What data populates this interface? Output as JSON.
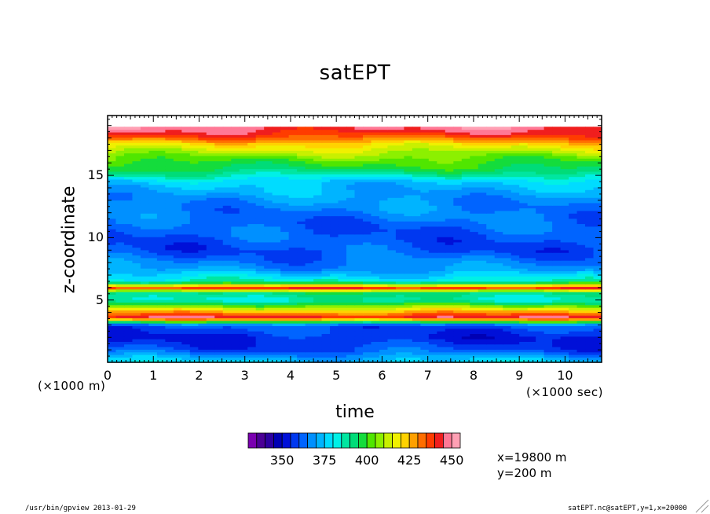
{
  "chart_data": {
    "type": "heatmap",
    "title": "satEPT",
    "xlabel": "time",
    "ylabel": "z-coordinate",
    "x_scale_label": "(×1000 sec)",
    "y_scale_label": "(×1000 m)",
    "xlim": [
      0,
      10.8
    ],
    "ylim": [
      0,
      19.8
    ],
    "x_ticks": [
      "0",
      "1",
      "2",
      "3",
      "4",
      "5",
      "6",
      "7",
      "8",
      "9",
      "10"
    ],
    "y_ticks": [
      "5",
      "10",
      "15"
    ],
    "colorbar": {
      "levels": [
        335,
        340,
        345,
        350,
        355,
        360,
        365,
        370,
        375,
        380,
        385,
        390,
        395,
        400,
        405,
        410,
        415,
        420,
        425,
        430,
        435,
        440,
        445,
        450
      ],
      "tick_labels": [
        "350",
        "375",
        "400",
        "425",
        "450"
      ],
      "colors": [
        "#7a00b0",
        "#4b0096",
        "#2d00a0",
        "#0000b4",
        "#0010d8",
        "#0038f0",
        "#0064ff",
        "#0090ff",
        "#00b4ff",
        "#00dcff",
        "#00f0e6",
        "#00e6a0",
        "#00dc78",
        "#14dc3c",
        "#50e600",
        "#8cf000",
        "#c8f000",
        "#f0f000",
        "#ffd200",
        "#ffa000",
        "#ff6e00",
        "#ff3c00",
        "#f01e1e",
        "#ff7896",
        "#ffa0b4"
      ]
    },
    "profile_z_km": [
      0.2,
      1.0,
      2.0,
      3.0,
      3.6,
      4.2,
      5.0,
      5.6,
      6.0,
      6.5,
      7.5,
      9.0,
      11.0,
      13.0,
      14.5,
      15.5,
      16.5,
      17.5,
      18.3,
      18.9
    ],
    "profile_value": [
      375,
      360,
      355,
      360,
      445,
      420,
      385,
      392,
      440,
      385,
      368,
      360,
      362,
      368,
      375,
      395,
      405,
      420,
      440,
      447
    ]
  },
  "annotation": {
    "x_line": "x=19800  m",
    "y_line": "y=200  m"
  },
  "footer": {
    "left": "/usr/bin/gpview  2013-01-29",
    "right": "satEPT.nc@satEPT,y=1,x=20000"
  }
}
